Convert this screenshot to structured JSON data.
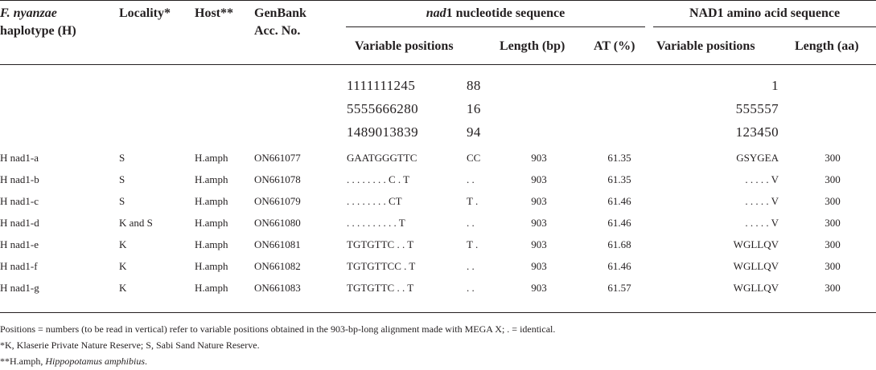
{
  "header": {
    "col1_species": "F. nyanzae",
    "col1_rest": "haplotype (H)",
    "locality": "Locality*",
    "host": "Host**",
    "genbank_line1": "GenBank",
    "genbank_line2": "Acc. No.",
    "nad1_gene": "nad",
    "nad1_rest": "1 nucleotide sequence",
    "aa_group": "NAD1 amino acid sequence",
    "sub_variable_positions": "Variable positions",
    "sub_length_bp": "Length (bp)",
    "sub_at": "AT (%)",
    "sub_aa_variable_positions": "Variable positions",
    "sub_length_aa": "Length (aa)"
  },
  "positions": {
    "nuc_a": [
      "1111111245",
      "5555666280",
      "1489013839"
    ],
    "nuc_b": [
      "88",
      "16",
      "94"
    ],
    "aa": [
      "1",
      "555557",
      "123450"
    ]
  },
  "rows": [
    {
      "h": "H nad1-a",
      "loc": "S",
      "host": "H.amph",
      "acc": "ON661077",
      "seq1": "GAATGGGTTC",
      "seq2": "CC",
      "bp": "903",
      "at": "61.35",
      "aa": "GSYGEA",
      "len": "300"
    },
    {
      "h": "H nad1-b",
      "loc": "S",
      "host": "H.amph",
      "acc": "ON661078",
      "seq1": ". . . . . . . . C . T",
      "seq2": ". .",
      "bp": "903",
      "at": "61.35",
      "aa": ". . . . . V",
      "len": "300"
    },
    {
      "h": "H nad1-c",
      "loc": "S",
      "host": "H.amph",
      "acc": "ON661079",
      "seq1": ". . . . . . . . CT",
      "seq2": "T .",
      "bp": "903",
      "at": "61.46",
      "aa": ". . . . . V",
      "len": "300"
    },
    {
      "h": "H nad1-d",
      "loc": "K and S",
      "host": "H.amph",
      "acc": "ON661080",
      "seq1": ". . . . . . . . . . T",
      "seq2": ". .",
      "bp": "903",
      "at": "61.46",
      "aa": ". . . . . V",
      "len": "300"
    },
    {
      "h": "H nad1-e",
      "loc": "K",
      "host": "H.amph",
      "acc": "ON661081",
      "seq1": "TGTGTTC . . T",
      "seq2": "T .",
      "bp": "903",
      "at": "61.68",
      "aa": "WGLLQV",
      "len": "300"
    },
    {
      "h": "H nad1-f",
      "loc": "K",
      "host": "H.amph",
      "acc": "ON661082",
      "seq1": "TGTGTTCC . T",
      "seq2": ". .",
      "bp": "903",
      "at": "61.46",
      "aa": "WGLLQV",
      "len": "300"
    },
    {
      "h": "H nad1-g",
      "loc": "K",
      "host": "H.amph",
      "acc": "ON661083",
      "seq1": "TGTGTTC . . T",
      "seq2": ". .",
      "bp": "903",
      "at": "61.57",
      "aa": "WGLLQV",
      "len": "300"
    }
  ],
  "footnotes": {
    "f1": "Positions = numbers (to be read in vertical) refer to variable positions obtained in the 903-bp-long alignment made with MEGA X; . = identical.",
    "f2": "*K, Klaserie Private Nature Reserve; S, Sabi Sand Nature Reserve.",
    "f3_prefix": "**H.amph, ",
    "f3_species": "Hippopotamus amphibius",
    "f3_suffix": "."
  }
}
